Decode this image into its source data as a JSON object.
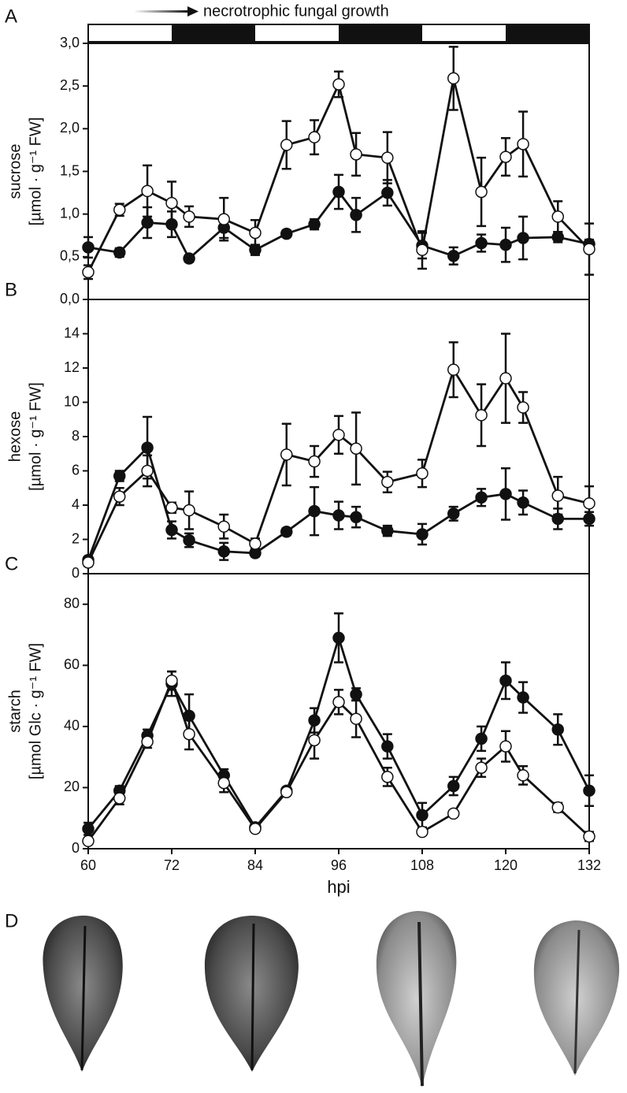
{
  "chart_data": [
    {
      "type": "line",
      "panel_label": "A",
      "annotation": "necrotrophic fungal growth",
      "dark_periods": [
        [
          72,
          84
        ],
        [
          96,
          108
        ],
        [
          120,
          132
        ]
      ],
      "ylabel": [
        "sucrose",
        "[µmol · g⁻¹ FW]"
      ],
      "x": [
        60,
        64.5,
        68.5,
        72,
        74.5,
        79.5,
        84,
        88.5,
        92.5,
        96,
        98.5,
        103,
        108,
        112.5,
        116.5,
        120,
        122.5,
        127.5,
        132
      ],
      "xlim": [
        60,
        132
      ],
      "ylim": [
        0,
        3
      ],
      "yticks": [
        {
          "value": 0,
          "label": "0,0"
        },
        {
          "value": 0.5,
          "label": "0,5"
        },
        {
          "value": 1,
          "label": "1,0"
        },
        {
          "value": 1.5,
          "label": "1,5"
        },
        {
          "value": 2,
          "label": "2,0"
        },
        {
          "value": 2.5,
          "label": "2,5"
        },
        {
          "value": 3,
          "label": "3,0"
        }
      ],
      "series": [
        {
          "color": "#111111",
          "marker_fill": "#111111",
          "values": [
            0.61,
            0.55,
            0.9,
            0.88,
            0.48,
            0.84,
            0.58,
            0.77,
            0.88,
            1.26,
            0.99,
            1.25,
            0.63,
            0.51,
            0.66,
            0.64,
            0.72,
            0.73,
            0.65
          ],
          "errors": [
            0.12,
            0.05,
            0.18,
            0.15,
            0.04,
            0.12,
            0.06,
            0.04,
            0.06,
            0.2,
            0.2,
            0.15,
            0.15,
            0.1,
            0.1,
            0.2,
            0.25,
            0.06,
            0.05
          ]
        },
        {
          "color": "#111111",
          "marker_fill": "#ffffff",
          "values": [
            0.32,
            1.05,
            1.27,
            1.13,
            0.97,
            0.94,
            0.78,
            1.81,
            1.9,
            2.52,
            1.7,
            1.66,
            0.58,
            2.59,
            1.26,
            1.67,
            1.82,
            0.97,
            0.59
          ],
          "errors": [
            0.08,
            0.07,
            0.3,
            0.25,
            0.12,
            0.25,
            0.15,
            0.28,
            0.2,
            0.15,
            0.25,
            0.3,
            0.22,
            0.37,
            0.4,
            0.22,
            0.38,
            0.18,
            0.3
          ]
        }
      ]
    },
    {
      "type": "line",
      "panel_label": "B",
      "ylabel": [
        "hexose",
        "[µmol · g⁻¹ FW]"
      ],
      "x": [
        60,
        64.5,
        68.5,
        72,
        74.5,
        79.5,
        84,
        88.5,
        92.5,
        96,
        98.5,
        103,
        108,
        112.5,
        116.5,
        120,
        122.5,
        127.5,
        132
      ],
      "xlim": [
        60,
        132
      ],
      "ylim": [
        0,
        16
      ],
      "yticks": [
        0,
        2,
        4,
        6,
        8,
        10,
        12,
        14
      ],
      "series": [
        {
          "color": "#111111",
          "marker_fill": "#111111",
          "values": [
            0.8,
            5.7,
            7.35,
            2.55,
            1.95,
            1.3,
            1.2,
            2.45,
            3.65,
            3.4,
            3.3,
            2.5,
            2.3,
            3.5,
            4.45,
            4.65,
            4.15,
            3.2,
            3.2
          ],
          "errors": [
            0.2,
            0.3,
            1.8,
            0.5,
            0.4,
            0.5,
            0.2,
            0.2,
            1.4,
            0.8,
            0.6,
            0.3,
            0.6,
            0.4,
            0.5,
            1.5,
            0.7,
            0.6,
            0.4
          ]
        },
        {
          "color": "#111111",
          "marker_fill": "#ffffff",
          "values": [
            0.65,
            4.5,
            6.0,
            3.85,
            3.7,
            2.75,
            1.75,
            6.95,
            6.55,
            8.1,
            7.3,
            5.35,
            5.85,
            11.9,
            9.25,
            11.4,
            9.7,
            4.55,
            4.1
          ],
          "errors": [
            0.2,
            0.5,
            0.9,
            0.3,
            1.1,
            0.7,
            0.3,
            1.8,
            0.9,
            1.1,
            2.1,
            0.6,
            0.8,
            1.6,
            1.8,
            2.6,
            0.9,
            1.1,
            1.0
          ]
        }
      ]
    },
    {
      "type": "line",
      "panel_label": "C",
      "ylabel": [
        "starch",
        "[µmol Glc · g⁻¹ FW]"
      ],
      "xlabel": "hpi",
      "x": [
        60,
        64.5,
        68.5,
        72,
        74.5,
        79.5,
        84,
        88.5,
        92.5,
        96,
        98.5,
        103,
        108,
        112.5,
        116.5,
        120,
        122.5,
        127.5,
        132
      ],
      "xlim": [
        60,
        132
      ],
      "xticks": [
        60,
        72,
        84,
        96,
        108,
        120,
        132
      ],
      "ylim": [
        0,
        90
      ],
      "yticks": [
        0,
        20,
        40,
        60,
        80
      ],
      "series": [
        {
          "color": "#111111",
          "marker_fill": "#111111",
          "values": [
            6.5,
            19,
            37,
            54,
            43.5,
            24,
            7,
            19,
            42,
            69,
            50.5,
            33.5,
            11,
            20.5,
            36,
            55,
            49.5,
            39,
            19
          ],
          "errors": [
            2,
            1.5,
            2,
            4,
            7,
            2,
            1,
            1,
            4,
            8,
            2,
            4,
            4,
            3,
            4,
            6,
            5,
            5,
            5
          ]
        },
        {
          "color": "#111111",
          "marker_fill": "#ffffff",
          "values": [
            2.5,
            16.5,
            35,
            55,
            37.5,
            21.5,
            6.5,
            18.5,
            35.5,
            48,
            42.5,
            23.5,
            5.5,
            11.5,
            26.5,
            33.5,
            24,
            13.5,
            4
          ],
          "errors": [
            1,
            2,
            2,
            3,
            5,
            3,
            1,
            1,
            6,
            4,
            6,
            3,
            1,
            1,
            3,
            5,
            3,
            1.5,
            1.5
          ]
        }
      ]
    }
  ],
  "images": {
    "panel_label": "D"
  }
}
